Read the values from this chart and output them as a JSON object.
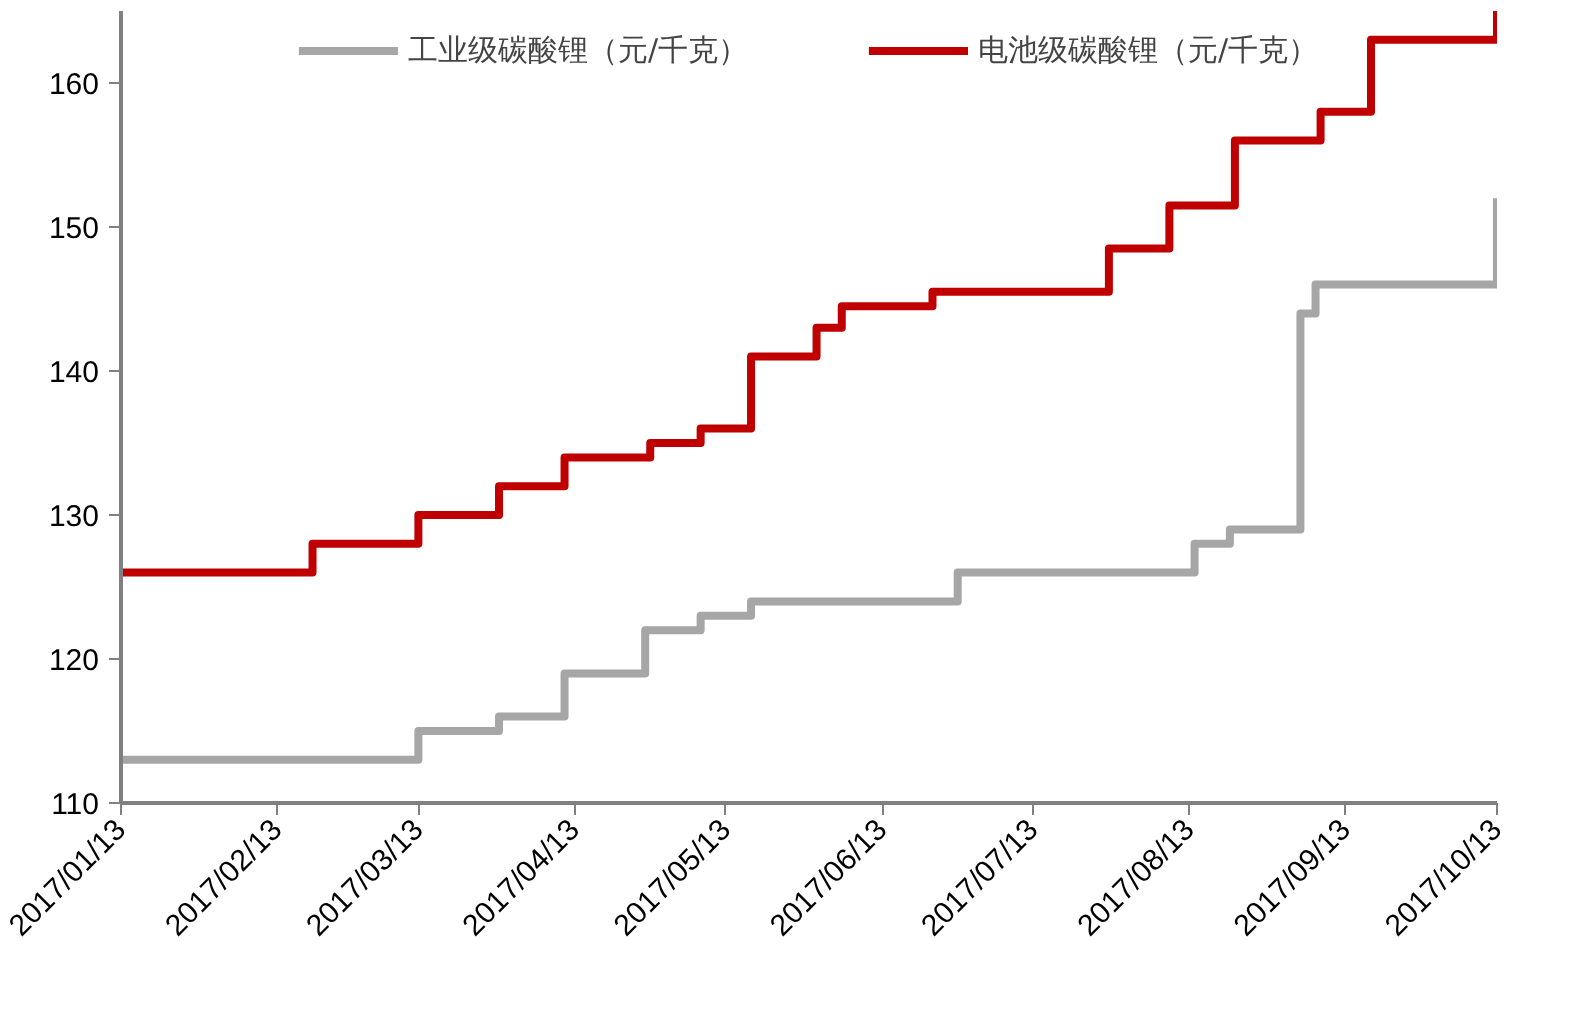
{
  "chart_data": {
    "type": "step",
    "legend": "top",
    "grid": false,
    "ylim": [
      110,
      165
    ],
    "yticks": [
      110,
      120,
      130,
      140,
      150,
      160
    ],
    "xlim": [
      "2017-01-13",
      "2017-10-13"
    ],
    "xticks": [
      {
        "value": "2017-01-13",
        "label": "2017/01/13"
      },
      {
        "value": "2017-02-13",
        "label": "2017/02/13"
      },
      {
        "value": "2017-03-13",
        "label": "2017/03/13"
      },
      {
        "value": "2017-04-13",
        "label": "2017/04/13"
      },
      {
        "value": "2017-05-13",
        "label": "2017/05/13"
      },
      {
        "value": "2017-06-13",
        "label": "2017/06/13"
      },
      {
        "value": "2017-07-13",
        "label": "2017/07/13"
      },
      {
        "value": "2017-08-13",
        "label": "2017/08/13"
      },
      {
        "value": "2017-09-13",
        "label": "2017/09/13"
      },
      {
        "value": "2017-10-13",
        "label": "2017/10/13"
      }
    ],
    "series": [
      {
        "name": "工业级碳酸锂（元/千克）",
        "color": "#a6a6a6",
        "x": [
          "2017-01-13",
          "2017-03-13",
          "2017-03-29",
          "2017-04-11",
          "2017-04-27",
          "2017-05-08",
          "2017-05-18",
          "2017-06-28",
          "2017-08-14",
          "2017-08-21",
          "2017-09-04",
          "2017-09-07",
          "2017-10-11",
          "2017-10-13"
        ],
        "values": [
          113,
          115,
          116,
          119,
          122,
          123,
          124,
          126,
          128,
          129,
          144,
          146,
          146,
          152
        ]
      },
      {
        "name": "电池级碳酸锂（元/千克）",
        "color": "#c00000",
        "x": [
          "2017-01-13",
          "2017-02-20",
          "2017-03-13",
          "2017-03-29",
          "2017-04-11",
          "2017-04-28",
          "2017-05-08",
          "2017-05-18",
          "2017-05-31",
          "2017-06-05",
          "2017-06-23",
          "2017-07-28",
          "2017-08-09",
          "2017-08-22",
          "2017-09-08",
          "2017-09-18",
          "2017-10-10",
          "2017-10-13"
        ],
        "values": [
          126,
          128,
          130,
          132,
          134,
          135,
          136,
          141,
          143,
          144.5,
          145.5,
          148.5,
          151.5,
          156,
          158,
          163,
          163,
          165
        ]
      }
    ]
  }
}
